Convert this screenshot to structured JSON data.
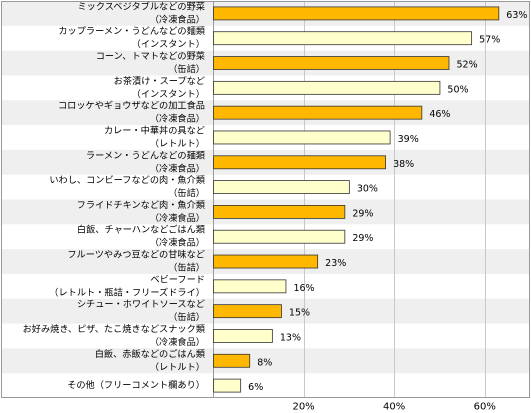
{
  "chart_data": {
    "type": "bar",
    "orientation": "horizontal",
    "categories": [
      [
        "ミックスベジタブルなどの野菜",
        "（冷凍食品）"
      ],
      [
        "カップラーメン・うどんなどの麺類",
        "（インスタント）"
      ],
      [
        "コーン、トマトなどの野菜",
        "（缶詰）"
      ],
      [
        "お茶漬け・スープなど",
        "（インスタント）"
      ],
      [
        "コロッケやギョウザなどの加工食品",
        "（冷凍食品）"
      ],
      [
        "カレー・中華丼の具など",
        "（レトルト）"
      ],
      [
        "ラーメン・うどんなどの麺類",
        "（冷凍食品）"
      ],
      [
        "いわし、コンビーフなどの肉・魚介類",
        "（缶詰）"
      ],
      [
        "フライドチキンなど肉・魚介類",
        "（冷凍食品）"
      ],
      [
        "白飯、チャーハンなどごはん類",
        "（冷凍食品）"
      ],
      [
        "フルーツやみつ豆などの甘味など",
        "（缶詰）"
      ],
      [
        "ベビーフード",
        "（レトルト・瓶詰・フリーズドライ）"
      ],
      [
        "シチュー・ホワイトソースなど",
        "（缶詰）"
      ],
      [
        "お好み焼き、ピザ、たこ焼きなどスナック類",
        "（冷凍食品）"
      ],
      [
        "白飯、赤飯などのごはん類",
        "（レトルト）"
      ],
      [
        "その他（フリーコメント欄あり）"
      ]
    ],
    "values": [
      63,
      57,
      52,
      50,
      46,
      39,
      38,
      30,
      29,
      29,
      23,
      16,
      15,
      13,
      8,
      6
    ],
    "value_labels": [
      "63%",
      "57%",
      "52%",
      "50%",
      "46%",
      "39%",
      "38%",
      "30%",
      "29%",
      "29%",
      "23%",
      "16%",
      "15%",
      "13%",
      "8%",
      "6%"
    ],
    "bar_colors": [
      "orange",
      "cream",
      "orange",
      "cream",
      "orange",
      "cream",
      "orange",
      "cream",
      "orange",
      "cream",
      "orange",
      "cream",
      "orange",
      "cream",
      "orange",
      "cream"
    ],
    "xlim": [
      0,
      70
    ],
    "xticks": [
      20,
      40,
      60
    ],
    "xtick_labels": [
      "20%",
      "40%",
      "60%"
    ],
    "grid": true,
    "title": "",
    "xlabel": "",
    "ylabel": ""
  },
  "colors": {
    "orange": "#ffb700",
    "cream": "#ffffcc",
    "bar_stroke": "#333333",
    "grid": "#c8c8c8",
    "row_shade": "#efefef",
    "border": "#999999",
    "text": "#000000"
  }
}
